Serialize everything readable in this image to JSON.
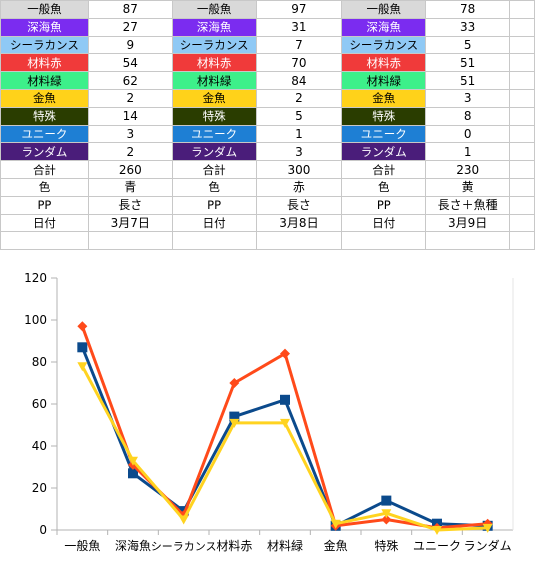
{
  "sheet": {
    "rows": [
      {
        "label": "一般魚",
        "v": [
          "87",
          "97",
          "78"
        ],
        "bg": "#d9d9d9",
        "fg": "#000000"
      },
      {
        "label": "深海魚",
        "v": [
          "27",
          "31",
          "33"
        ],
        "bg": "#7b2cf0",
        "fg": "#ffffff"
      },
      {
        "label": "シーラカンス",
        "v": [
          "9",
          "7",
          "5"
        ],
        "bg": "#8fc9f5",
        "fg": "#000000"
      },
      {
        "label": "材料赤",
        "v": [
          "54",
          "70",
          "51"
        ],
        "bg": "#f03a3a",
        "fg": "#ffffff"
      },
      {
        "label": "材料緑",
        "v": [
          "62",
          "84",
          "51"
        ],
        "bg": "#3df08a",
        "fg": "#000000"
      },
      {
        "label": "金魚",
        "v": [
          "2",
          "2",
          "3"
        ],
        "bg": "#ffd21a",
        "fg": "#000000"
      },
      {
        "label": "特殊",
        "v": [
          "14",
          "5",
          "8"
        ],
        "bg": "#2a3d00",
        "fg": "#ffffff"
      },
      {
        "label": "ユニーク",
        "v": [
          "3",
          "1",
          "0"
        ],
        "bg": "#1e7fd4",
        "fg": "#ffffff"
      },
      {
        "label": "ランダム",
        "v": [
          "2",
          "3",
          "1"
        ],
        "bg": "#4a1d7a",
        "fg": "#ffffff"
      },
      {
        "label": "合計",
        "v": [
          "260",
          "300",
          "230"
        ],
        "bg": "#ffffff",
        "fg": "#000000"
      }
    ],
    "info_rows": [
      {
        "label": "色",
        "v": [
          "青",
          "赤",
          "黄"
        ]
      },
      {
        "label": "PP",
        "v": [
          "長さ",
          "長さ",
          "長さ＋魚種"
        ]
      },
      {
        "label": "日付",
        "v": [
          "3月7日",
          "3月8日",
          "3月9日"
        ]
      }
    ]
  },
  "chart_data": {
    "type": "line",
    "categories": [
      "一般魚",
      "深海魚",
      "シーラカンス",
      "材料赤",
      "材料緑",
      "金魚",
      "特殊",
      "ユニーク",
      "ランダム"
    ],
    "series": [
      {
        "values": [
          87,
          27,
          9,
          54,
          62,
          2,
          14,
          3,
          2
        ],
        "color": "#0b4a8c",
        "marker": "square"
      },
      {
        "values": [
          97,
          31,
          7,
          70,
          84,
          2,
          5,
          1,
          3
        ],
        "color": "#ff4a1a",
        "marker": "diamond"
      },
      {
        "values": [
          78,
          33,
          5,
          51,
          51,
          3,
          8,
          0,
          1
        ],
        "color": "#ffd320",
        "marker": "triangle"
      }
    ],
    "yticks": [
      "0",
      "20",
      "40",
      "60",
      "80",
      "100",
      "120"
    ],
    "ylim": [
      0,
      120
    ],
    "grid": false,
    "legend": "none"
  }
}
